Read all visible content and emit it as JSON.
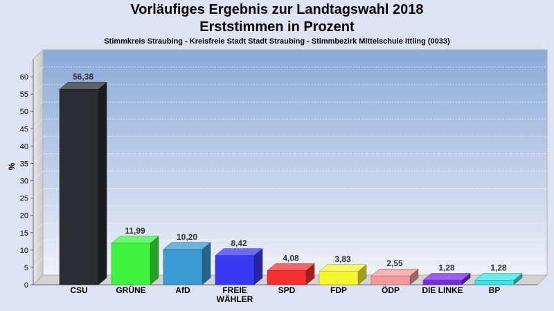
{
  "header": {
    "title_line1": "Vorläufiges Ergebnis zur Landtagswahl 2018",
    "title_line2": "Erststimmen in Prozent",
    "subtitle": "Stimmkreis Straubing - Kreisfreie Stadt Stadt Straubing - Stimmbezirk Mittelschule Ittling (0033)"
  },
  "chart_data": {
    "type": "bar",
    "title": "Vorläufiges Ergebnis zur Landtagswahl 2018 Erststimmen in Prozent",
    "subtitle": "Stimmkreis Straubing - Kreisfreie Stadt Stadt Straubing - Stimmbezirk Mittelschule Ittling (0033)",
    "ylabel": "%",
    "ylim": [
      0,
      65
    ],
    "yticks": [
      0,
      5,
      10,
      15,
      20,
      25,
      30,
      35,
      40,
      45,
      50,
      55,
      60
    ],
    "grid": true,
    "categories": [
      "CSU",
      "GRÜNE",
      "AfD",
      "FREIE WÄHLER",
      "SPD",
      "FDP",
      "ÖDP",
      "DIE LINKE",
      "BP"
    ],
    "category_lines": [
      [
        "CSU"
      ],
      [
        "GRÜNE"
      ],
      [
        "AfD"
      ],
      [
        "FREIE",
        "WÄHLER"
      ],
      [
        "SPD"
      ],
      [
        "FDP"
      ],
      [
        "ÖDP"
      ],
      [
        "DIE LINKE"
      ],
      [
        "BP"
      ]
    ],
    "values": [
      56.38,
      11.99,
      10.2,
      8.42,
      4.08,
      3.83,
      2.55,
      1.28,
      1.28
    ],
    "value_labels": [
      "56,38",
      "11,99",
      "10,20",
      "8,42",
      "4,08",
      "3,83",
      "2,55",
      "1,28",
      "1,28"
    ],
    "colors": [
      "#2a2d33",
      "#3ef43e",
      "#3a9bd3",
      "#3a3af5",
      "#f53030",
      "#f5f530",
      "#f59a9a",
      "#7a2ae0",
      "#35e6e6"
    ]
  }
}
